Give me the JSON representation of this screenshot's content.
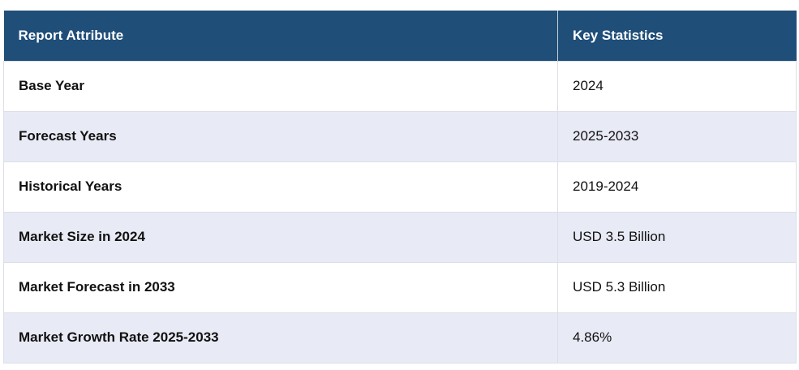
{
  "table": {
    "headers": [
      "Report Attribute",
      "Key Statistics"
    ],
    "rows": [
      [
        "Base Year",
        "2024"
      ],
      [
        "Forecast Years",
        "2025-2033"
      ],
      [
        "Historical Years",
        "2019-2024"
      ],
      [
        "Market Size in 2024",
        "USD 3.5 Billion"
      ],
      [
        "Market Forecast in 2033",
        "USD 5.3 Billion"
      ],
      [
        "Market Growth Rate 2025-2033",
        "4.86%"
      ]
    ]
  },
  "colors": {
    "header_bg": "#1f4e79",
    "header_text": "#ffffff",
    "row_alt_bg": "#e8eaf5"
  }
}
